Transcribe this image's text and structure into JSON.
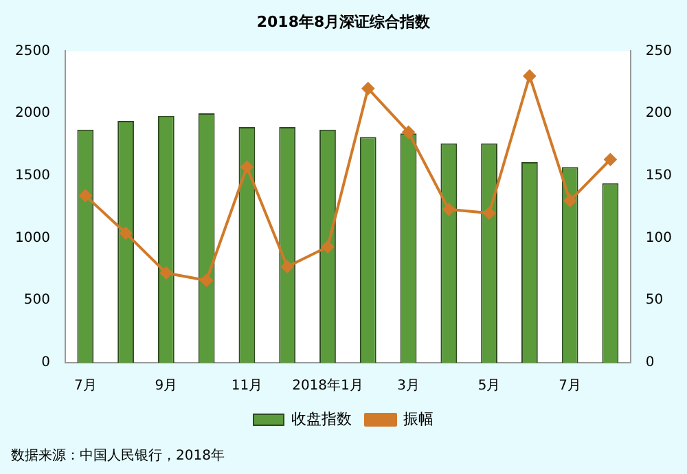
{
  "chart_data": {
    "type": "bar",
    "title": "2018年8月深证综合指数",
    "categories": [
      "7月",
      null,
      "9月",
      null,
      "11月",
      null,
      "2018年1月",
      null,
      "3月",
      null,
      "5月",
      null,
      "7月",
      null
    ],
    "series": [
      {
        "name": "收盘指数",
        "color": "#5b9b3c",
        "values": [
          1870,
          1940,
          1980,
          2000,
          1890,
          1890,
          1870,
          1810,
          1840,
          1760,
          1760,
          1610,
          1570,
          1440
        ]
      },
      {
        "name": "振幅",
        "type": "line",
        "axis": "y2",
        "color": "#d07a2a",
        "values": [
          134,
          104,
          72,
          66,
          157,
          77,
          93,
          220,
          185,
          123,
          120,
          230,
          130,
          163
        ]
      }
    ],
    "ylim": [
      0,
      2500
    ],
    "yticks": [
      0,
      500,
      1000,
      1500,
      2000,
      2500
    ],
    "y2lim": [
      0,
      250
    ],
    "y2ticks": [
      0,
      50,
      100,
      150,
      200,
      250
    ],
    "grid": false,
    "legend": "bottom",
    "marker": "diamond",
    "line_style": "solid",
    "annotations": [
      "数据来源：中国人民银行，2018年"
    ]
  }
}
